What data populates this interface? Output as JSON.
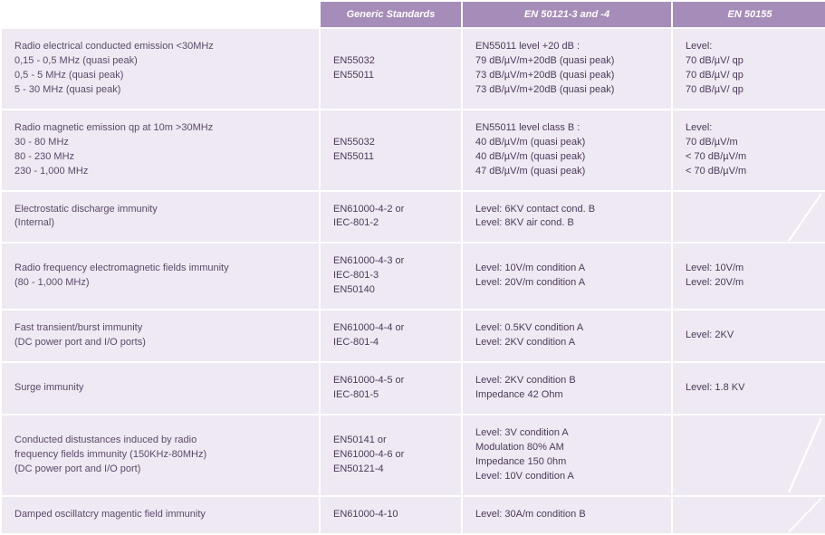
{
  "colors": {
    "header_bg": "#a68cb8",
    "header_fg": "#ffffff",
    "cell_bg": "#efe9f3",
    "text": "#5a4a6a",
    "slash": "#ffffff"
  },
  "columns": [
    {
      "label": ""
    },
    {
      "label": "Generic Standards"
    },
    {
      "label": "EN 50121-3 and -4"
    },
    {
      "label": "EN 50155"
    }
  ],
  "rows": [
    {
      "desc": [
        "Radio electrical conducted emission <30MHz",
        "0,15 - 0,5 MHz (quasi peak)",
        "0,5 - 5 MHz (quasi peak)",
        "5 - 30 MHz (quasi peak)"
      ],
      "generic": [
        "EN55032",
        "EN55011"
      ],
      "en50121": [
        "EN55011 level +20 dB :",
        "79 dB/µV/m+20dB (quasi peak)",
        "73 dB/µV/m+20dB (quasi peak)",
        "73 dB/µV/m+20dB (quasi peak)"
      ],
      "en50155": [
        "Level:",
        "70 dB/µV/ qp",
        "70 dB/µV/ qp",
        "70 dB/µV/ qp"
      ],
      "slash155": false
    },
    {
      "desc": [
        "Radio magnetic emission qp at 10m >30MHz",
        "30 - 80 MHz",
        "80 - 230 MHz",
        "230 - 1,000 MHz"
      ],
      "generic": [
        "EN55032",
        "EN55011"
      ],
      "en50121": [
        "EN55011 level class B :",
        "40 dB/µV/m (quasi peak)",
        "40 dB/µV/m (quasi peak)",
        "47 dB/µV/m (quasi peak)"
      ],
      "en50155": [
        "Level:",
        "70 dB/µV/m",
        "< 70 dB/µV/m",
        "< 70 dB/µV/m"
      ],
      "slash155": false
    },
    {
      "desc": [
        "Electrostatic discharge immunity",
        "(Internal)"
      ],
      "generic": [
        "EN61000-4-2 or",
        "IEC-801-2"
      ],
      "en50121": [
        "Level: 6KV contact cond. B",
        "Level: 8KV air cond. B"
      ],
      "en50155": [],
      "slash155": true
    },
    {
      "desc": [
        "Radio frequency electromagnetic fields immunity",
        "(80 - 1,000 MHz)"
      ],
      "generic": [
        "EN61000-4-3 or",
        "IEC-801-3",
        "EN50140"
      ],
      "en50121": [
        "Level: 10V/m condition A",
        "Level: 20V/m condition A"
      ],
      "en50155": [
        "Level: 10V/m",
        "Level: 20V/m"
      ],
      "slash155": false
    },
    {
      "desc": [
        "Fast transient/burst immunity",
        "(DC power port and I/O ports)"
      ],
      "generic": [
        "EN61000-4-4 or",
        "IEC-801-4"
      ],
      "en50121": [
        "Level: 0.5KV condition A",
        "Level: 2KV condition A"
      ],
      "en50155": [
        "Level: 2KV"
      ],
      "slash155": false
    },
    {
      "desc": [
        "Surge immunity"
      ],
      "generic": [
        "EN61000-4-5 or",
        "IEC-801-5"
      ],
      "en50121": [
        "Level: 2KV condition B",
        "Impedance 42 Ohm"
      ],
      "en50155": [
        "Level: 1.8 KV"
      ],
      "slash155": false
    },
    {
      "desc": [
        "Conducted distustances induced by radio",
        "frequency fields immunity (150KHz-80MHz)",
        "(DC power port and I/O port)"
      ],
      "generic": [
        "EN50141 or",
        "EN61000-4-6 or",
        "EN50121-4"
      ],
      "en50121": [
        "Level: 3V condition A",
        "Modulation 80% AM",
        "Impedance 150 0hm",
        "Level: 10V condition A"
      ],
      "en50155": [],
      "slash155": true
    },
    {
      "desc": [
        "Damped oscillatcry magentic field immunity"
      ],
      "generic": [
        "EN61000-4-10"
      ],
      "en50121": [
        "Level: 30A/m condition B"
      ],
      "en50155": [],
      "slash155": true
    }
  ]
}
